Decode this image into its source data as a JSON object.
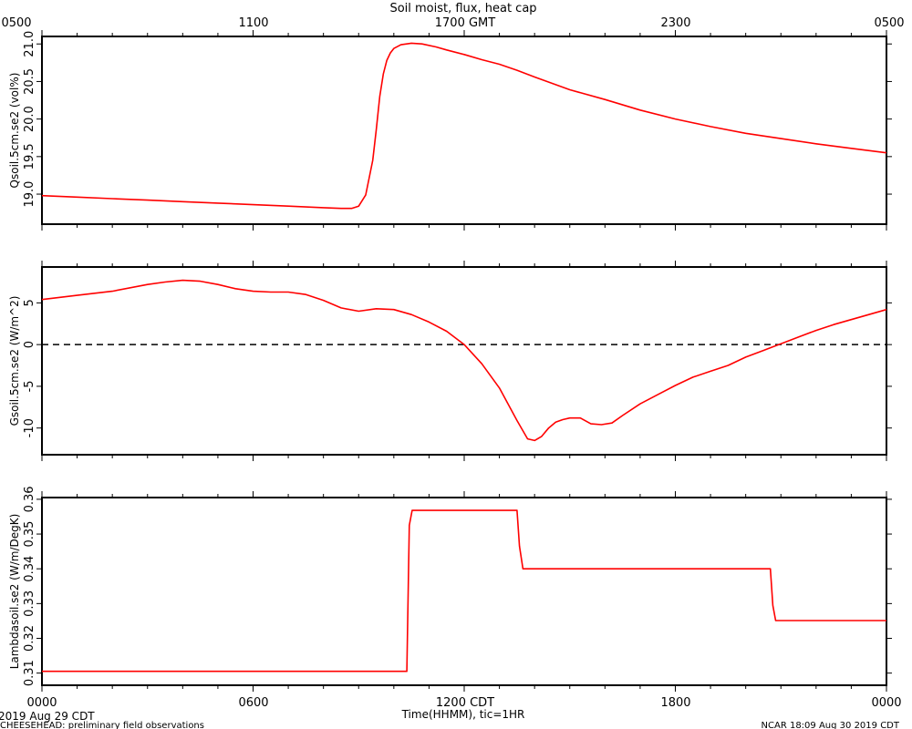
{
  "header": {
    "title": "Soil moist, flux, heat cap",
    "gmt_ticks": [
      "0500",
      "1100",
      "1700 GMT",
      "2300",
      "0500"
    ]
  },
  "footer": {
    "cdt_ticks": [
      "0000",
      "0600",
      "1200 CDT",
      "1800",
      "0000"
    ],
    "date_label": "2019 Aug 29 CDT",
    "xlabel": "Time(HHMM), tic=1HR",
    "left_note": "CHEESEHEAD: preliminary field observations",
    "right_note": "NCAR 18:09 Aug 30 2019 CDT"
  },
  "colors": {
    "series": "#ff0000",
    "axis": "#000000",
    "zero_line": "#000000"
  },
  "chart_data": [
    {
      "type": "line",
      "ylabel": "Qsoil.5cm.se2 (vol%)",
      "xlim": [
        0,
        24
      ],
      "ylim": [
        18.6,
        21.1
      ],
      "yticks": [
        19.0,
        19.5,
        20.0,
        20.5,
        21.0
      ],
      "ytick_labels": [
        "19.0",
        "19.5",
        "20.0",
        "20.5",
        "21.0"
      ],
      "grid": false,
      "series": [
        {
          "x": [
            0,
            1,
            2,
            3,
            4,
            5,
            6,
            7,
            8,
            8.5,
            8.8,
            9.0,
            9.2,
            9.4,
            9.5,
            9.6,
            9.7,
            9.8,
            9.9,
            10.0,
            10.2,
            10.5,
            10.8,
            11.2,
            11.5,
            12,
            12.5,
            13,
            13.5,
            14,
            15,
            16,
            17,
            18,
            19,
            20,
            21,
            22,
            23,
            24
          ],
          "y": [
            18.98,
            18.96,
            18.94,
            18.92,
            18.9,
            18.88,
            18.86,
            18.84,
            18.82,
            18.81,
            18.81,
            18.84,
            18.99,
            19.45,
            19.85,
            20.3,
            20.6,
            20.78,
            20.88,
            20.94,
            20.99,
            21.01,
            21.0,
            20.96,
            20.92,
            20.86,
            20.79,
            20.73,
            20.65,
            20.56,
            20.39,
            20.26,
            20.12,
            20.0,
            19.9,
            19.81,
            19.74,
            19.67,
            19.61,
            19.55
          ]
        }
      ]
    },
    {
      "type": "line",
      "ylabel": "Gsoil.5cm.se2 (W/m^2)",
      "xlim": [
        0,
        24
      ],
      "ylim": [
        -13.2,
        9.3
      ],
      "yticks": [
        -10,
        -5,
        0,
        5
      ],
      "ytick_labels": [
        "-10",
        "-5",
        "0",
        "5"
      ],
      "grid": false,
      "zero_line": 0,
      "series": [
        {
          "x": [
            0,
            1,
            2,
            3,
            3.5,
            4,
            4.5,
            5,
            5.5,
            6,
            6.5,
            7,
            7.5,
            8,
            8.5,
            9,
            9.5,
            10,
            10.5,
            11,
            11.5,
            12,
            12.5,
            13,
            13.5,
            13.8,
            14,
            14.2,
            14.4,
            14.6,
            14.8,
            15,
            15.3,
            15.6,
            15.9,
            16.2,
            16.5,
            17,
            17.5,
            18,
            18.5,
            19,
            19.5,
            20,
            20.5,
            21,
            21.5,
            22,
            22.5,
            23,
            23.5,
            24
          ],
          "y": [
            5.4,
            5.9,
            6.4,
            7.2,
            7.5,
            7.7,
            7.6,
            7.2,
            6.7,
            6.4,
            6.3,
            6.3,
            6.0,
            5.3,
            4.4,
            4.0,
            4.3,
            4.2,
            3.6,
            2.7,
            1.6,
            0.0,
            -2.3,
            -5.2,
            -9.1,
            -11.3,
            -11.5,
            -11.0,
            -10.0,
            -9.3,
            -9.0,
            -8.8,
            -8.8,
            -9.5,
            -9.6,
            -9.4,
            -8.5,
            -7.1,
            -6.0,
            -4.9,
            -3.9,
            -3.2,
            -2.5,
            -1.5,
            -0.7,
            0.1,
            0.9,
            1.7,
            2.4,
            3.0,
            3.6,
            4.2
          ]
        }
      ]
    },
    {
      "type": "line",
      "ylabel": "Lambdasoil.se2 (W/m/DegK)",
      "xlim": [
        0,
        24
      ],
      "ylim": [
        0.3065,
        0.3605
      ],
      "yticks": [
        0.31,
        0.32,
        0.33,
        0.34,
        0.35,
        0.36
      ],
      "ytick_labels": [
        "0.31",
        "0.32",
        "0.33",
        "0.34",
        "0.35",
        "0.36"
      ],
      "grid": false,
      "series": [
        {
          "x": [
            0,
            10.37,
            10.44,
            10.52,
            13.5,
            13.57,
            13.67,
            20.7,
            20.77,
            20.85,
            24
          ],
          "y": [
            0.3105,
            0.3105,
            0.3525,
            0.3568,
            0.3568,
            0.3465,
            0.34,
            0.34,
            0.3295,
            0.3251,
            0.3251
          ]
        }
      ]
    }
  ]
}
